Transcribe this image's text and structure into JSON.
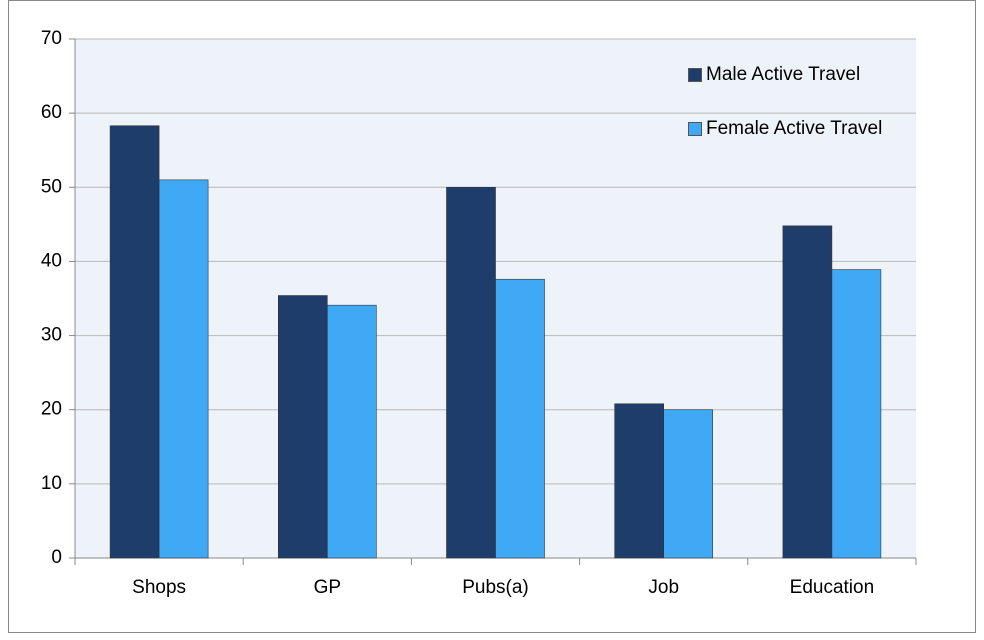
{
  "chart_data": {
    "type": "bar",
    "categories": [
      "Shops",
      "GP",
      "Pubs(a)",
      "Job",
      "Education"
    ],
    "series": [
      {
        "name": "Male Active Travel",
        "color": "#1f3d6a",
        "values": [
          58.3,
          35.4,
          50.0,
          20.8,
          44.8
        ]
      },
      {
        "name": "Female Active Travel",
        "color": "#3fa9f5",
        "values": [
          51.0,
          34.1,
          37.6,
          20.0,
          38.9
        ]
      }
    ],
    "ylim": [
      0,
      70
    ],
    "yticks": [
      0,
      10,
      20,
      30,
      40,
      50,
      60,
      70
    ],
    "grid": true,
    "legend": "top-right"
  }
}
